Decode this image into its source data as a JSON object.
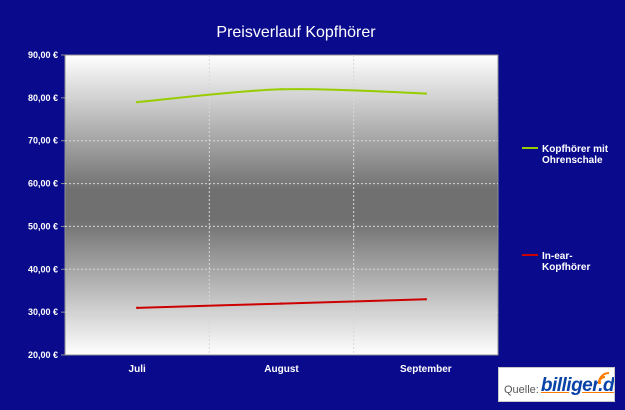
{
  "chart_data": {
    "type": "line",
    "title": "Preisverlauf Kopfhörer",
    "categories": [
      "Juli",
      "August",
      "September"
    ],
    "y_tick_labels": [
      "20,00 €",
      "30,00 €",
      "40,00 €",
      "50,00 €",
      "60,00 €",
      "70,00 €",
      "80,00 €",
      "90,00 €"
    ],
    "ylim": [
      20,
      90
    ],
    "grid": true,
    "legend_position": "right",
    "series": [
      {
        "name": "Kopfhörer mit Ohrenschale",
        "legend_lines": [
          "Kopfhörer mit",
          "Ohrenschale"
        ],
        "values": [
          79,
          82,
          81
        ],
        "color": "#99cc00"
      },
      {
        "name": "In-ear-Kopfhörer",
        "legend_lines": [
          "In-ear-",
          "Kopfhörer"
        ],
        "values": [
          31,
          32,
          33
        ],
        "color": "#cc0000"
      }
    ]
  },
  "logo": {
    "prefix": "Quelle:",
    "text": "billiger.de",
    "icon": "signal-waves-icon",
    "accent_color": "#ff7a00"
  }
}
